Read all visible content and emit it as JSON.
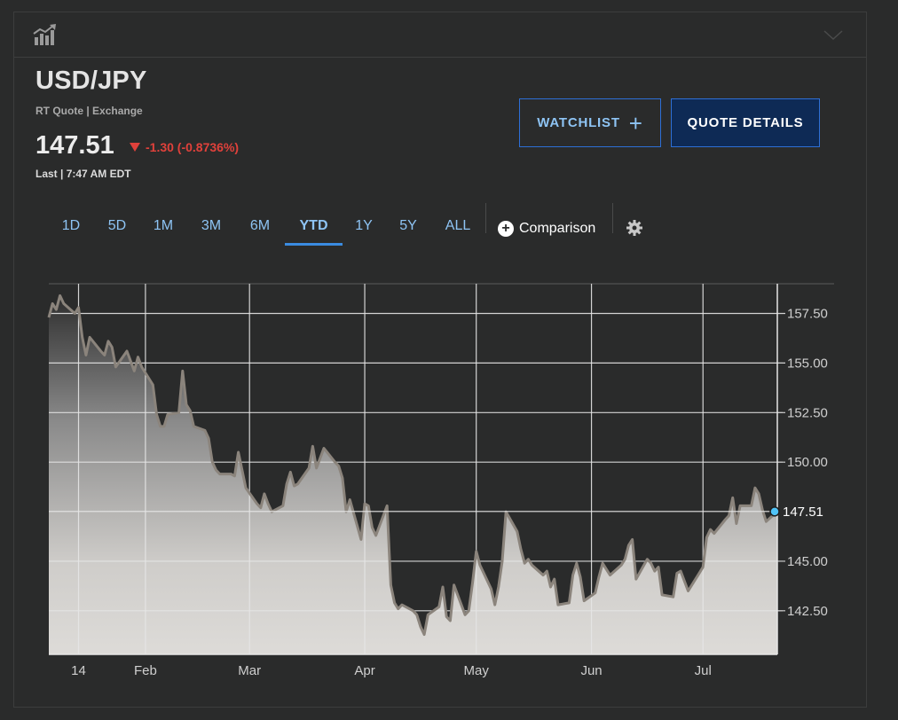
{
  "header": {
    "chart_icon": "bar-chart-trend-icon",
    "collapse_icon": "chevron-down-icon"
  },
  "quote": {
    "symbol": "USD/JPY",
    "source": "RT Quote | Exchange",
    "price": "147.51",
    "change": "-1.30 (-0.8736%)",
    "change_direction": "down",
    "change_color": "#e0413b",
    "last": "Last | 7:47 AM EDT"
  },
  "buttons": {
    "watchlist": "WATCHLIST",
    "watchlist_icon": "plus-icon",
    "quote_details": "QUOTE DETAILS"
  },
  "ranges": {
    "items": [
      "1D",
      "5D",
      "1M",
      "3M",
      "6M",
      "YTD",
      "1Y",
      "5Y",
      "ALL"
    ],
    "active": "YTD",
    "comparison": "Comparison",
    "settings_icon": "gear-icon"
  },
  "chart_data": {
    "type": "area",
    "ylim": [
      140.3,
      159.0
    ],
    "y_ticks": [
      157.5,
      155.0,
      152.5,
      150.0,
      145.0,
      142.5
    ],
    "y_tick_labels": [
      "157.50",
      "155.00",
      "152.50",
      "150.00",
      "145.00",
      "142.50"
    ],
    "last_value_label": "147.51",
    "last_value": 147.51,
    "x_labels": [
      "14",
      "Feb",
      "Mar",
      "Apr",
      "May",
      "Jun",
      "Jul"
    ],
    "x_label_dates": [
      "2025-01-14",
      "2025-02-01",
      "2025-03-01",
      "2025-04-01",
      "2025-05-01",
      "2025-06-01",
      "2025-07-01"
    ],
    "x_start": "2025-01-06",
    "x_end": "2025-07-21",
    "line_color": "#8b847c",
    "marker_color": "#4fc3f7",
    "series": [
      {
        "x": [
          "2025-01-06",
          "2025-01-07",
          "2025-01-08",
          "2025-01-09",
          "2025-01-10",
          "2025-01-13",
          "2025-01-14",
          "2025-01-15",
          "2025-01-16",
          "2025-01-17",
          "2025-01-20",
          "2025-01-21",
          "2025-01-22",
          "2025-01-23",
          "2025-01-24",
          "2025-01-27",
          "2025-01-28",
          "2025-01-29",
          "2025-01-30",
          "2025-01-31",
          "2025-02-03",
          "2025-02-04",
          "2025-02-05",
          "2025-02-06",
          "2025-02-07",
          "2025-02-10",
          "2025-02-11",
          "2025-02-12",
          "2025-02-13",
          "2025-02-14",
          "2025-02-17",
          "2025-02-18",
          "2025-02-19",
          "2025-02-20",
          "2025-02-21",
          "2025-02-24",
          "2025-02-25",
          "2025-02-26",
          "2025-02-27",
          "2025-02-28",
          "2025-03-03",
          "2025-03-04",
          "2025-03-05",
          "2025-03-06",
          "2025-03-07",
          "2025-03-10",
          "2025-03-11",
          "2025-03-12",
          "2025-03-13",
          "2025-03-14",
          "2025-03-17",
          "2025-03-18",
          "2025-03-19",
          "2025-03-20",
          "2025-03-21",
          "2025-03-24",
          "2025-03-25",
          "2025-03-26",
          "2025-03-27",
          "2025-03-28",
          "2025-03-31",
          "2025-04-01",
          "2025-04-02",
          "2025-04-03",
          "2025-04-04",
          "2025-04-07",
          "2025-04-08",
          "2025-04-09",
          "2025-04-10",
          "2025-04-11",
          "2025-04-14",
          "2025-04-15",
          "2025-04-16",
          "2025-04-17",
          "2025-04-18",
          "2025-04-21",
          "2025-04-22",
          "2025-04-23",
          "2025-04-24",
          "2025-04-25",
          "2025-04-28",
          "2025-04-29",
          "2025-04-30",
          "2025-05-01",
          "2025-05-02",
          "2025-05-05",
          "2025-05-06",
          "2025-05-07",
          "2025-05-08",
          "2025-05-09",
          "2025-05-12",
          "2025-05-13",
          "2025-05-14",
          "2025-05-15",
          "2025-05-16",
          "2025-05-19",
          "2025-05-20",
          "2025-05-21",
          "2025-05-22",
          "2025-05-23",
          "2025-05-26",
          "2025-05-27",
          "2025-05-28",
          "2025-05-29",
          "2025-05-30",
          "2025-06-02",
          "2025-06-03",
          "2025-06-04",
          "2025-06-05",
          "2025-06-06",
          "2025-06-09",
          "2025-06-10",
          "2025-06-11",
          "2025-06-12",
          "2025-06-13",
          "2025-06-16",
          "2025-06-17",
          "2025-06-18",
          "2025-06-19",
          "2025-06-20",
          "2025-06-23",
          "2025-06-24",
          "2025-06-25",
          "2025-06-26",
          "2025-06-27",
          "2025-06-30",
          "2025-07-01",
          "2025-07-02",
          "2025-07-03",
          "2025-07-04",
          "2025-07-07",
          "2025-07-08",
          "2025-07-09",
          "2025-07-10",
          "2025-07-11",
          "2025-07-14",
          "2025-07-15",
          "2025-07-16",
          "2025-07-17",
          "2025-07-18",
          "2025-07-21"
        ],
        "y": [
          157.3,
          158.0,
          157.7,
          158.4,
          158.0,
          157.5,
          157.8,
          156.3,
          155.4,
          156.3,
          155.6,
          155.4,
          156.1,
          155.8,
          154.8,
          155.6,
          155.1,
          154.6,
          155.3,
          154.8,
          153.9,
          152.4,
          151.8,
          151.8,
          152.4,
          152.5,
          154.6,
          152.9,
          152.6,
          151.8,
          151.6,
          151.2,
          150.0,
          149.6,
          149.4,
          149.4,
          149.3,
          150.5,
          149.6,
          148.7,
          147.9,
          147.7,
          148.4,
          147.9,
          147.5,
          147.8,
          148.9,
          149.5,
          148.8,
          148.9,
          149.7,
          150.8,
          149.7,
          150.2,
          150.7,
          150.0,
          149.8,
          149.2,
          147.5,
          148.1,
          146.1,
          147.9,
          147.8,
          146.7,
          146.3,
          147.8,
          143.8,
          142.9,
          142.6,
          142.8,
          142.5,
          142.3,
          141.7,
          141.3,
          142.3,
          142.7,
          143.7,
          142.2,
          142.0,
          143.8,
          142.3,
          142.5,
          143.9,
          145.5,
          144.8,
          143.6,
          142.8,
          143.7,
          145.0,
          147.5,
          146.5,
          145.6,
          144.9,
          145.1,
          144.8,
          144.3,
          144.5,
          143.7,
          144.1,
          142.8,
          142.9,
          144.3,
          144.9,
          144.2,
          143.0,
          143.4,
          144.2,
          144.9,
          144.6,
          144.3,
          144.8,
          145.1,
          145.8,
          146.1,
          144.1,
          145.1,
          144.9,
          144.5,
          144.7,
          143.3,
          143.2,
          144.4,
          144.5,
          144.0,
          143.5,
          144.4,
          144.7,
          146.2,
          146.6,
          146.4,
          147.1,
          147.3,
          148.2,
          146.9,
          147.8,
          147.8,
          148.7,
          148.4,
          147.6,
          147.0,
          147.51
        ]
      }
    ]
  }
}
